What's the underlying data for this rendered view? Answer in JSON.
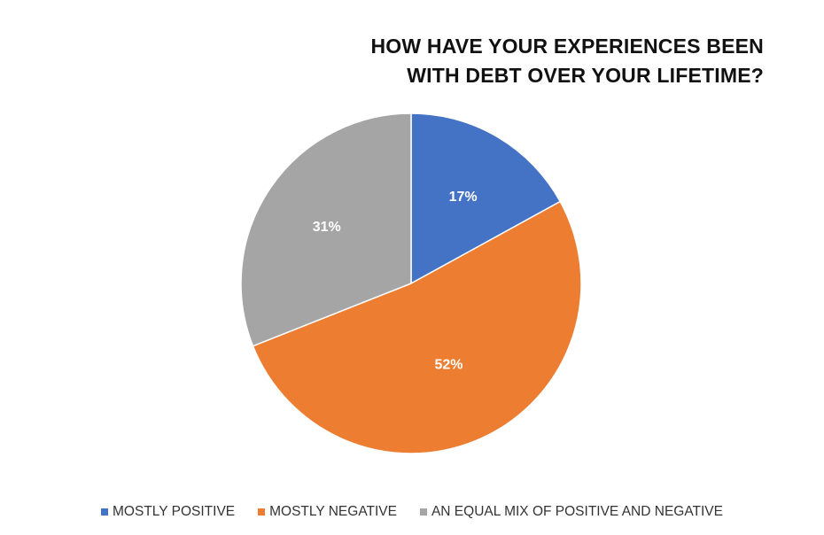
{
  "chart_data": {
    "type": "pie",
    "title_lines": [
      "HOW HAVE YOUR EXPERIENCES BEEN",
      "WITH DEBT OVER YOUR LIFETIME?"
    ],
    "start_angle": "12 o'clock, clockwise",
    "slices": [
      {
        "label": "MOSTLY POSITIVE",
        "value": 17,
        "display": "17%",
        "color": "#4472C4"
      },
      {
        "label": "MOSTLY NEGATIVE",
        "value": 52,
        "display": "52%",
        "color": "#ED7D31"
      },
      {
        "label": "AN EQUAL MIX OF POSITIVE AND NEGATIVE",
        "value": 31,
        "display": "31%",
        "color": "#A5A5A5"
      }
    ],
    "legend_position": "bottom"
  }
}
